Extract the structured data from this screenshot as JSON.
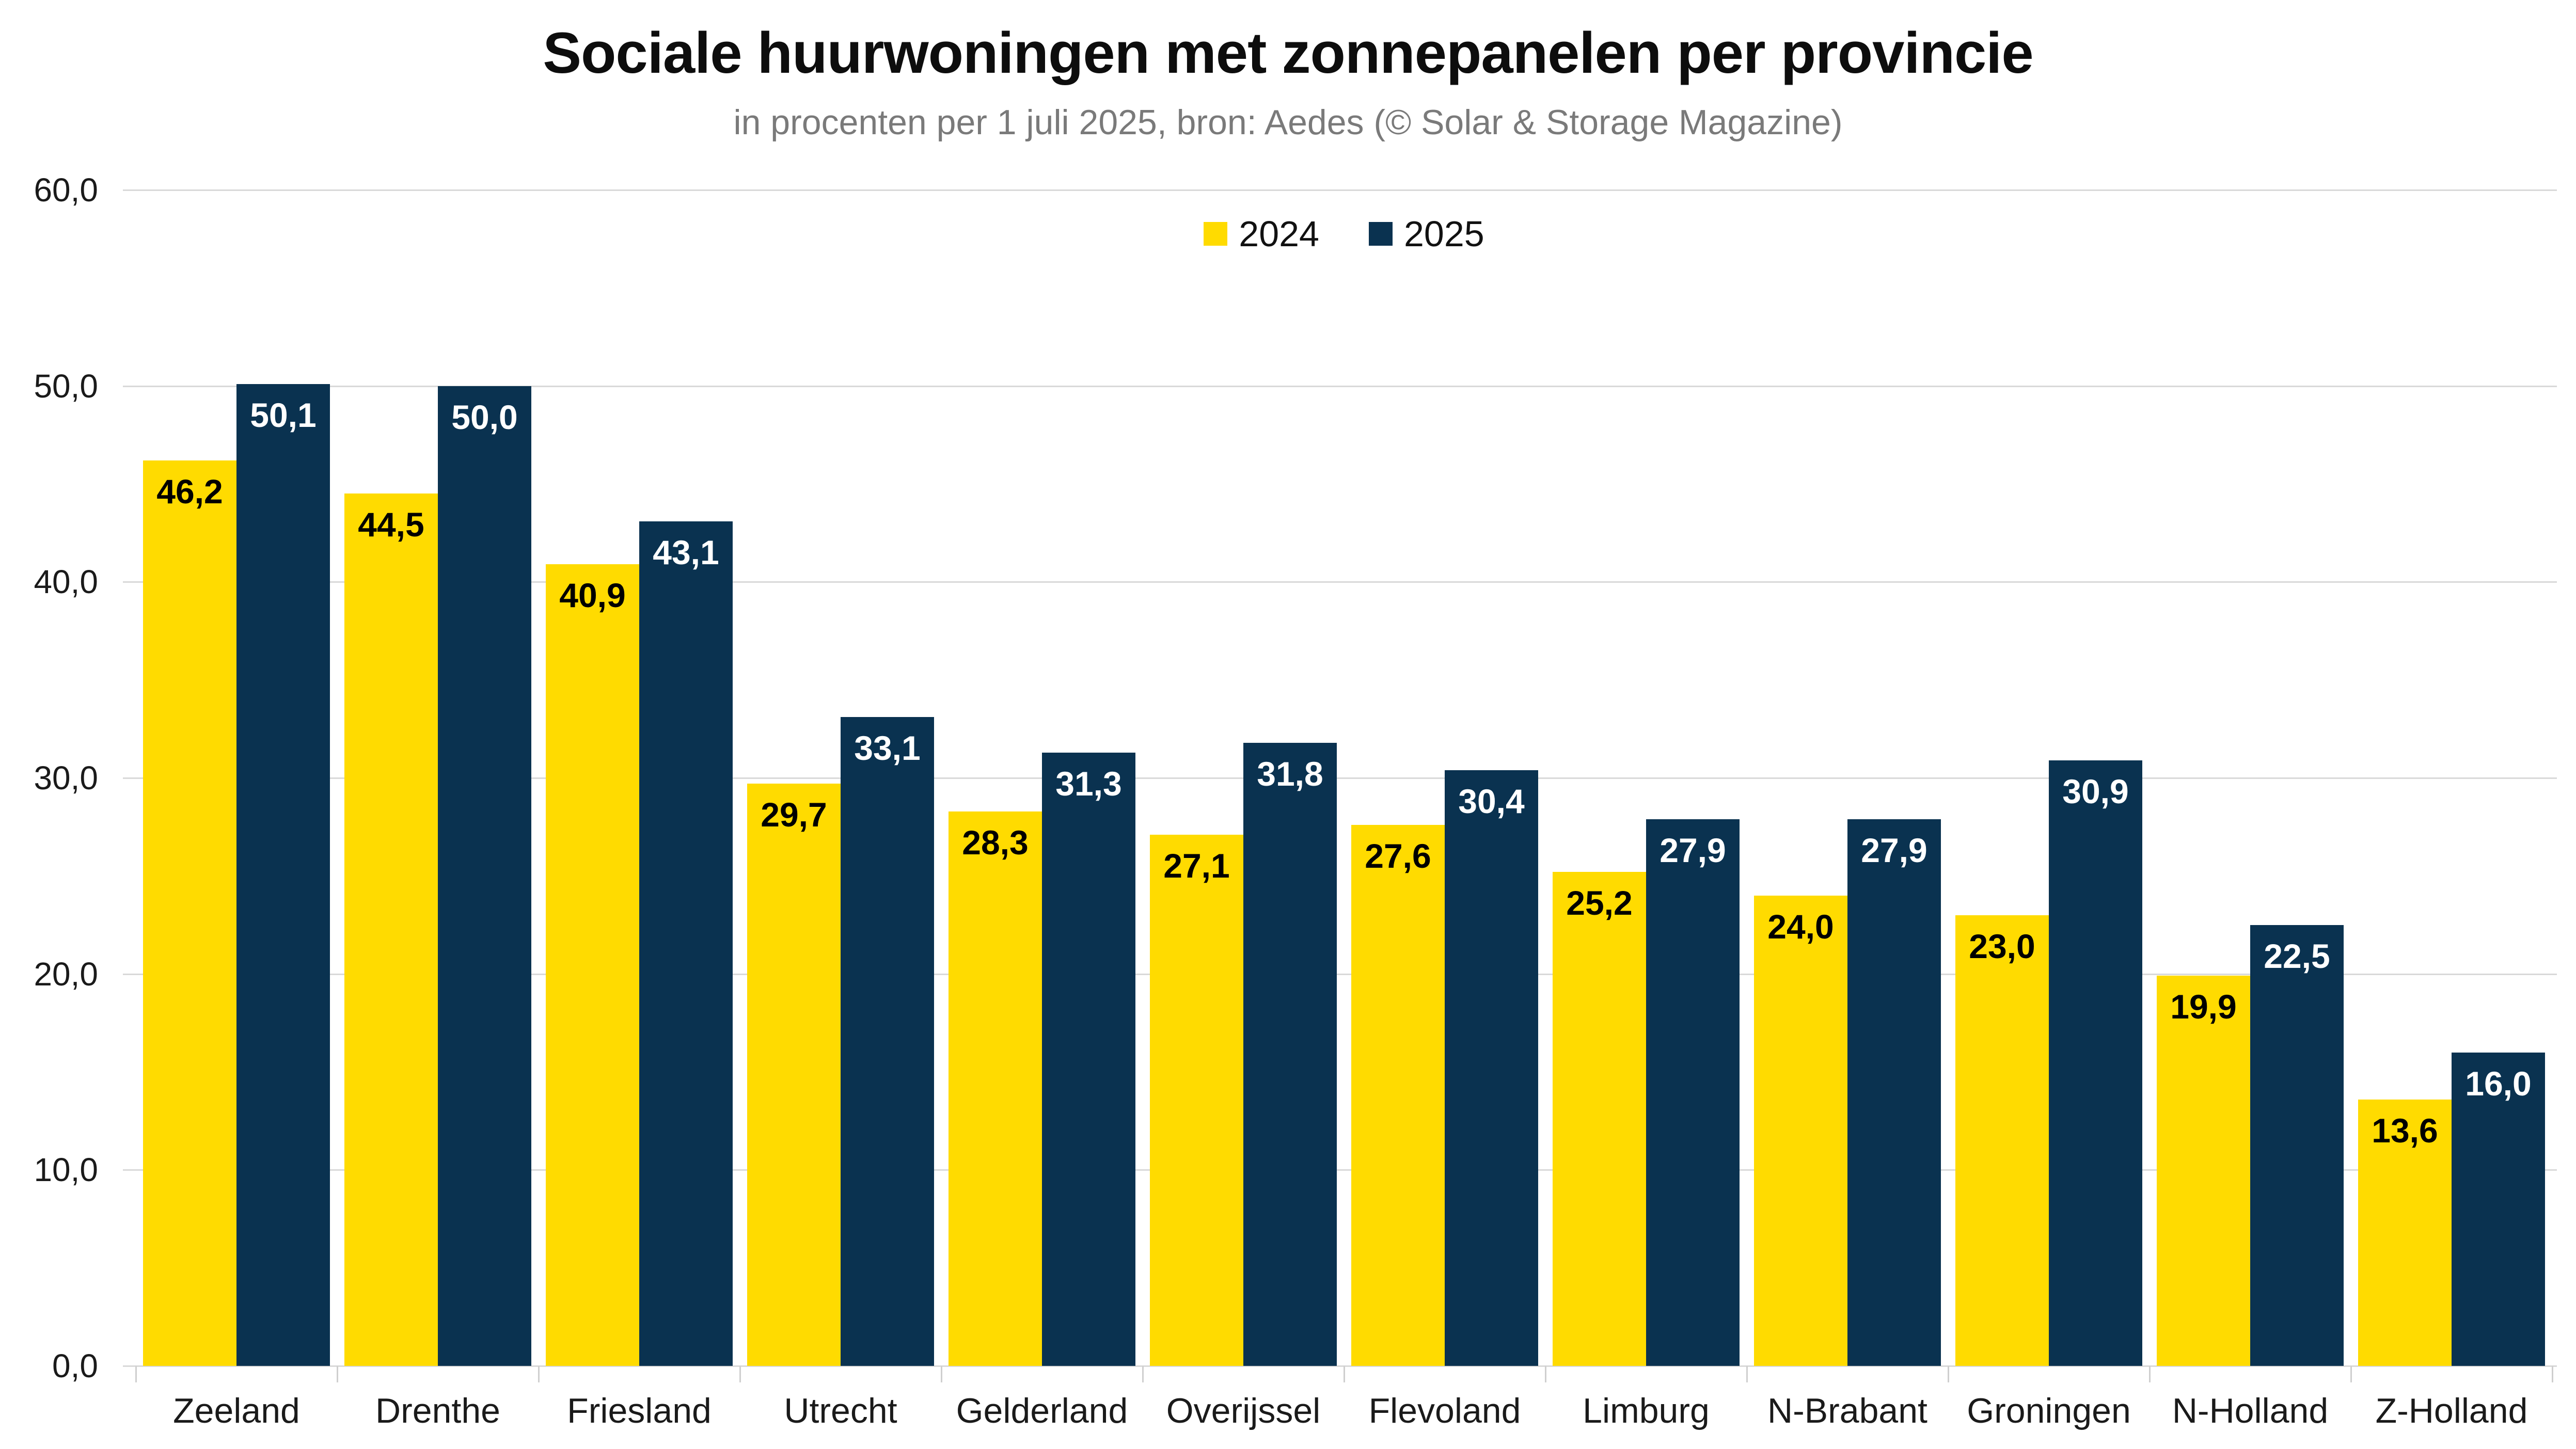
{
  "chart_data": {
    "type": "bar",
    "title": "Sociale huurwoningen met zonnepanelen per provincie",
    "subtitle": "in procenten per 1 juli 2025, bron: Aedes (© Solar & Storage Magazine)",
    "categories": [
      "Zeeland",
      "Drenthe",
      "Friesland",
      "Utrecht",
      "Gelderland",
      "Overijssel",
      "Flevoland",
      "Limburg",
      "N-Brabant",
      "Groningen",
      "N-Holland",
      "Z-Holland"
    ],
    "series": [
      {
        "name": "2024",
        "color": "#FFDB00",
        "value_label_color": "#000000",
        "values": [
          46.2,
          44.5,
          40.9,
          29.7,
          28.3,
          27.1,
          27.6,
          25.2,
          24.0,
          23.0,
          19.9,
          13.6
        ]
      },
      {
        "name": "2025",
        "color": "#0A3250",
        "value_label_color": "#FFFFFF",
        "values": [
          50.1,
          50.0,
          43.1,
          33.1,
          31.3,
          31.8,
          30.4,
          27.9,
          27.9,
          30.9,
          22.5,
          16.0
        ]
      }
    ],
    "ylabel": "",
    "xlabel": "",
    "ylim": [
      0,
      60
    ],
    "yticks": [
      0,
      10,
      20,
      30,
      40,
      50,
      60
    ],
    "decimal_separator": ",",
    "value_labels_visible": true,
    "grid": "horizontal",
    "gridline_color": "#d9d9d9",
    "axis_tick_color": "#cfcfcf",
    "axis_label_color": "#1a1a1a",
    "legend_position": "top-center",
    "legend_entries": [
      "2024",
      "2025"
    ]
  }
}
